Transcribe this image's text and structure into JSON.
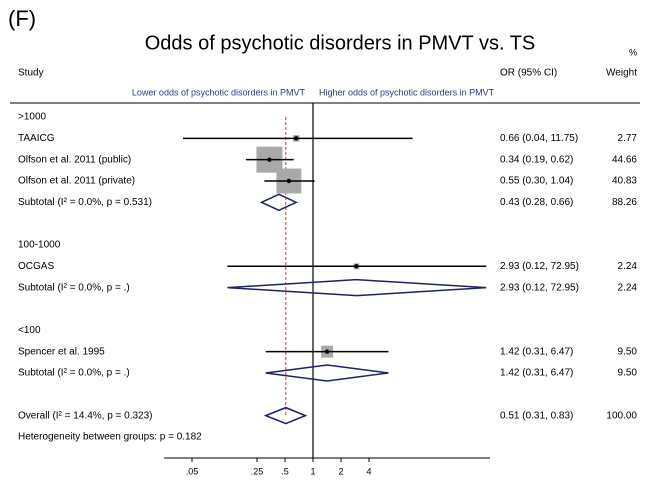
{
  "chart_data": {
    "type": "forest",
    "panel_label": "(F)",
    "title": "Odds of psychotic disorders in PMVT vs. TS",
    "columns": {
      "study": "Study",
      "estimate": "OR (95% CI)",
      "weight": [
        "%",
        "Weight"
      ]
    },
    "direction_labels": [
      "Lower odds of psychotic disorders in PMVT",
      "Higher odds of psychotic disorders in PMVT"
    ],
    "groups": [
      {
        "heading": ">1000",
        "studies": [
          {
            "label": "TAAICG",
            "values": [
              0.66,
              0.04,
              11.75
            ],
            "value_label": "0.66 (0.04, 11.75)",
            "weight": 2.77
          },
          {
            "label": "Olfson et al. 2011 (public)",
            "values": [
              0.34,
              0.19,
              0.62
            ],
            "value_label": "0.34 (0.19, 0.62)",
            "weight": 44.66
          },
          {
            "label": "Olfson et al. 2011 (private)",
            "values": [
              0.55,
              0.3,
              1.04
            ],
            "value_label": "0.55 (0.30, 1.04)",
            "weight": 40.83
          }
        ],
        "subtotal": {
          "label": "Subtotal  (I² = 0.0%, p = 0.531)",
          "values": [
            0.43,
            0.28,
            0.66
          ],
          "value_label": "0.43 (0.28, 0.66)",
          "weight": 88.26
        }
      },
      {
        "heading": "100-1000",
        "studies": [
          {
            "label": "OCGAS",
            "values": [
              2.93,
              0.12,
              72.95
            ],
            "value_label": "2.93 (0.12, 72.95)",
            "weight": 2.24
          }
        ],
        "subtotal": {
          "label": "Subtotal  (I² = 0.0%, p = .)",
          "values": [
            2.93,
            0.12,
            72.95
          ],
          "value_label": "2.93 (0.12, 72.95)",
          "weight": 2.24
        }
      },
      {
        "heading": "<100",
        "studies": [
          {
            "label": "Spencer et al. 1995",
            "values": [
              1.42,
              0.31,
              6.47
            ],
            "value_label": "1.42 (0.31, 6.47)",
            "weight": 9.5,
            "weight_label": "9.50"
          }
        ],
        "subtotal": {
          "label": "Subtotal  (I² = 0.0%, p = .)",
          "values": [
            1.42,
            0.31,
            6.47
          ],
          "value_label": "1.42 (0.31, 6.47)",
          "weight": 9.5,
          "weight_label": "9.50"
        }
      }
    ],
    "overall": {
      "label": "Overall  (I² = 14.4%, p = 0.323)",
      "values": [
        0.51,
        0.31,
        0.83
      ],
      "value_label": "0.51 (0.31, 0.83)",
      "weight": 100,
      "weight_label": "100.00"
    },
    "note": "Heterogeneity between groups: p = 0.182",
    "log_x": true,
    "reference": 1,
    "xlim": [
      0.025,
      80
    ],
    "xticks": [
      {
        "value": 0.05,
        "label": ".05"
      },
      {
        "value": 0.25,
        "label": ".25"
      },
      {
        "value": 0.5,
        "label": ".5"
      },
      1,
      2,
      4
    ],
    "box_color": "#a9a9a9",
    "diamond_color": "#1c2366",
    "overall_line_color": "#b5473a"
  }
}
